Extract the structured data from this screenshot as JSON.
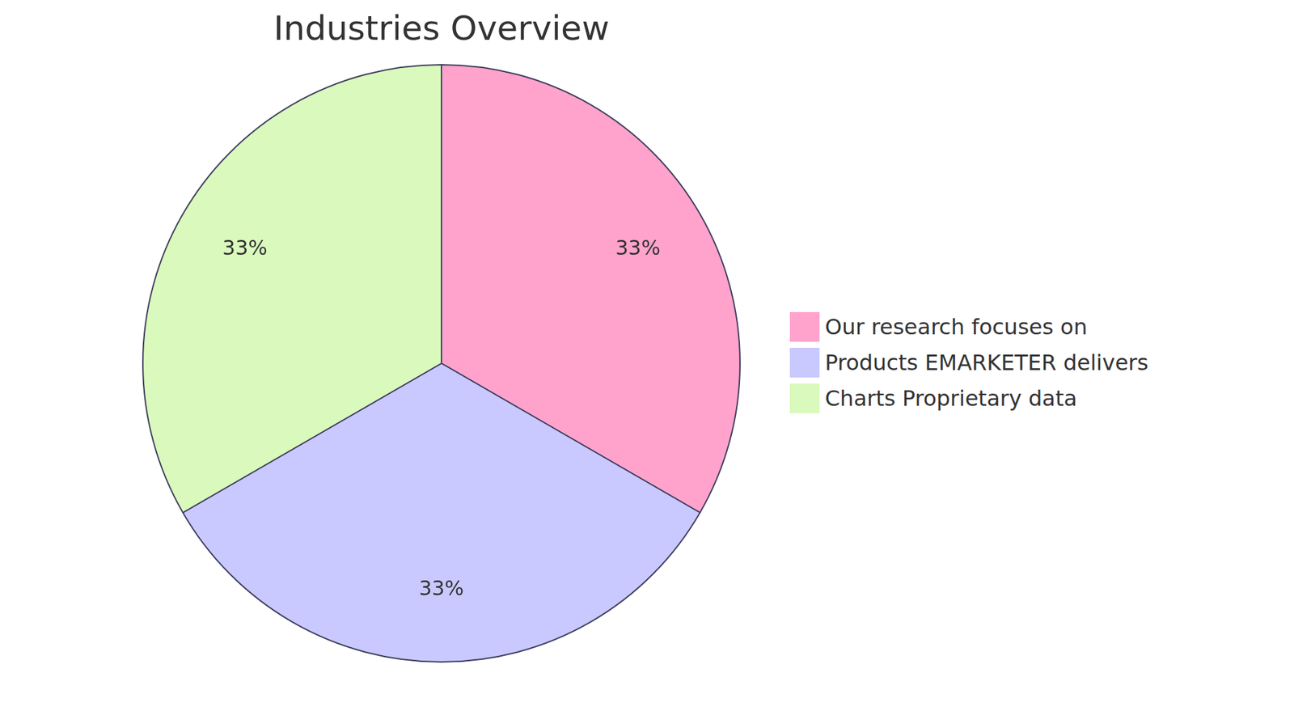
{
  "chart_data": {
    "type": "pie",
    "title": "Industries Overview",
    "categories": [
      "Our research focuses on",
      "Products EMARKETER delivers",
      "Charts Proprietary data"
    ],
    "values": [
      33,
      33,
      33
    ],
    "value_labels": [
      "33%",
      "33%",
      "33%"
    ],
    "colors": [
      "#ffa3cd",
      "#c9c9ff",
      "#daf9bc"
    ],
    "data_labels": true,
    "legend": "right"
  }
}
